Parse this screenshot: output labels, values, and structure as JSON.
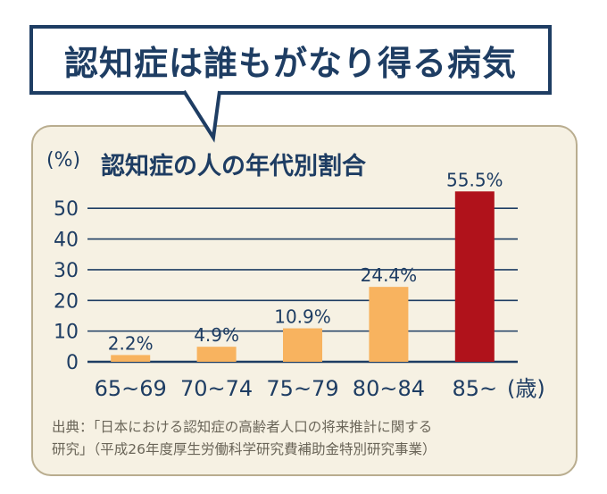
{
  "headline": "認知症は誰もがなり得る病気",
  "source": {
    "line1": "出典：「日本における認知症の高齢者人口の将来推計に関する",
    "line2": "研究」（平成26年度厚生労働科学研究費補助金特別研究事業）"
  },
  "colors": {
    "navy": "#1e3d63",
    "bar_orange": "#f8b35f",
    "bar_red": "#b0121b",
    "panel_bg": "#f6f1e3"
  },
  "chart_data": {
    "type": "bar",
    "title": "認知症の人の年代別割合",
    "unit_label": "(%)",
    "x_unit_label": "(歳)",
    "categories": [
      "65~69",
      "70~74",
      "75~79",
      "80~84",
      "85~"
    ],
    "values": [
      2.2,
      4.9,
      10.9,
      24.4,
      55.5
    ],
    "value_labels": [
      "2.2%",
      "4.9%",
      "10.9%",
      "24.4%",
      "55.5%"
    ],
    "bar_colors": [
      "#f8b35f",
      "#f8b35f",
      "#f8b35f",
      "#f8b35f",
      "#b0121b"
    ],
    "ylim": [
      0,
      55
    ],
    "yticks": [
      0,
      10,
      20,
      30,
      40,
      50
    ],
    "grid": true
  }
}
